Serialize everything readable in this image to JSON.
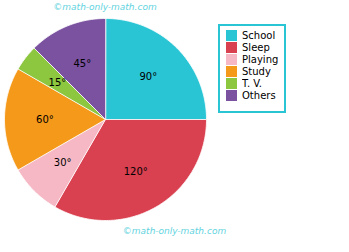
{
  "chart_data": {
    "type": "pie",
    "categories": [
      "School",
      "Sleep",
      "Playing",
      "Study",
      "T. V.",
      "Others"
    ],
    "values": [
      90,
      120,
      30,
      60,
      15,
      45
    ],
    "value_labels": [
      "90°",
      "120°",
      "30°",
      "60°",
      "15°",
      "45°"
    ],
    "colors": [
      "#29c5d4",
      "#d94050",
      "#f5b8c4",
      "#f5991a",
      "#8dc63f",
      "#7b52a0"
    ],
    "data_labels": true,
    "legend": "right",
    "annotations": [
      "©math-only-math.com",
      "©math-only-math.com"
    ]
  }
}
